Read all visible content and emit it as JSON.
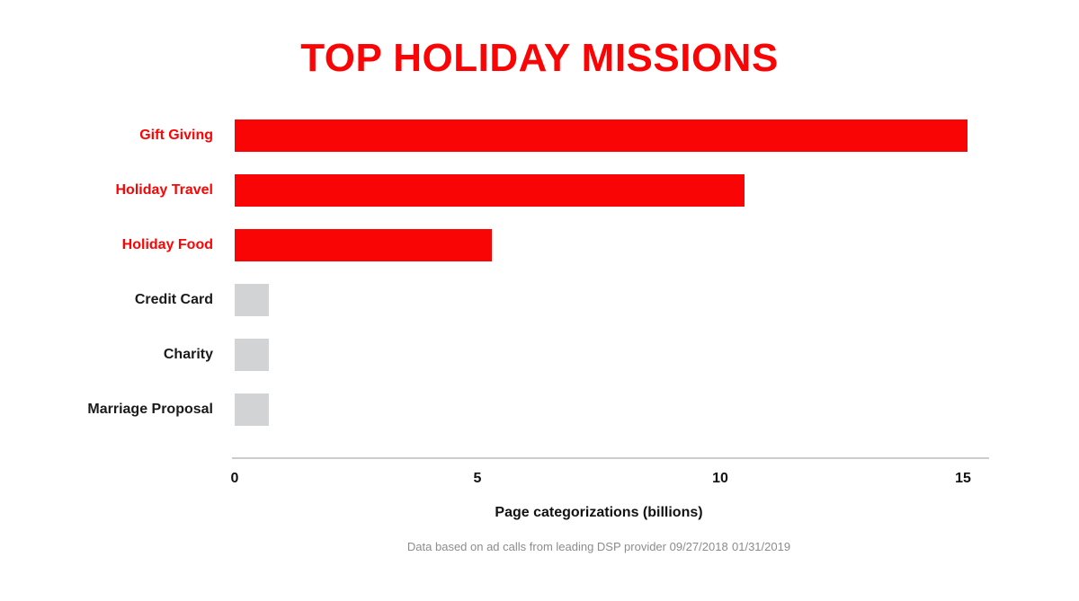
{
  "chart_data": {
    "type": "bar",
    "orientation": "horizontal",
    "title": "TOP HOLIDAY MISSIONS",
    "categories": [
      "Gift Giving",
      "Holiday Travel",
      "Holiday Food",
      "Credit Card",
      "Charity",
      "Marriage Proposal"
    ],
    "values": [
      15.1,
      10.5,
      5.3,
      0.7,
      0.7,
      0.7
    ],
    "bar_colors": [
      "#FA0505",
      "#FA0505",
      "#FA0505",
      "#D1D3D4",
      "#D1D3D4",
      "#D1D3D4"
    ],
    "label_colors": [
      "#FA0505",
      "#FA0505",
      "#FA0505",
      "#1A1A1A",
      "#1A1A1A",
      "#1A1A1A"
    ],
    "xlabel": "Page categorizations (billions)",
    "xticks": [
      0,
      5,
      10,
      15
    ],
    "xlim": [
      0,
      15.6
    ],
    "grid": false,
    "legend": false,
    "footnote": "Data based on ad calls from leading DSP provider 09/27/2018 01/31/2019"
  },
  "colors": {
    "highlight_red": "#FA0505",
    "muted_gray_bar": "#D1D3D4",
    "axis_line": "#CCCCCC",
    "footnote_text": "#8C8C8C",
    "label_dark": "#1A1A1A",
    "background": "#FFFFFF"
  }
}
